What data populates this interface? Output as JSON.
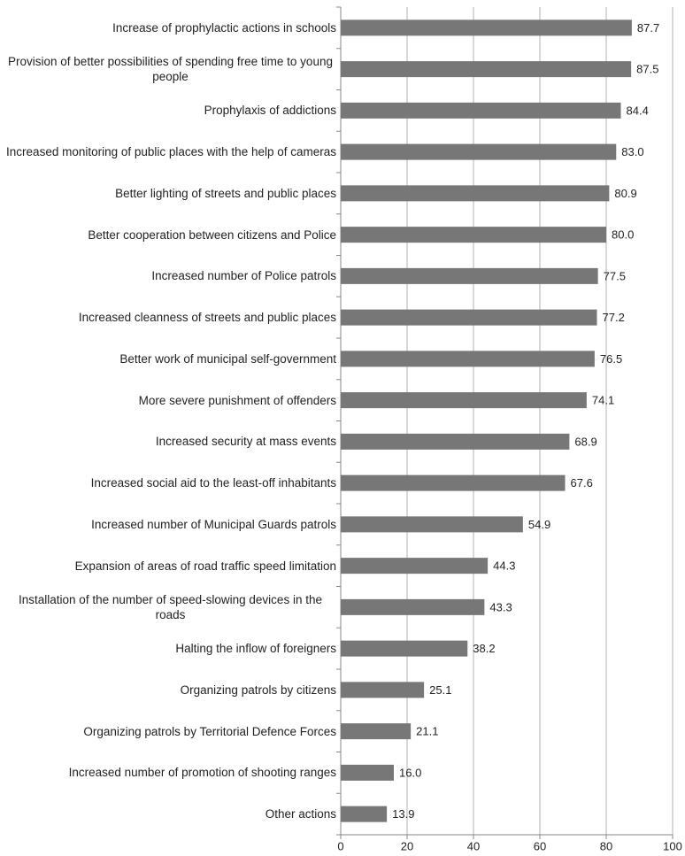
{
  "chart_data": {
    "type": "bar",
    "orientation": "horizontal",
    "categories": [
      "Increase of prophylactic actions in schools",
      "Provision of better possibilities of spending free time to young people",
      "Prophylaxis of addictions",
      "Increased monitoring of public places with the help of cameras",
      "Better lighting of streets and public places",
      "Better cooperation between citizens and Police",
      "Increased number of Police patrols",
      "Increased cleanness of streets and public places",
      "Better work of municipal self-government",
      "More severe punishment of offenders",
      "Increased security at mass events",
      "Increased social aid to the least-off inhabitants",
      "Increased number of Municipal Guards patrols",
      "Expansion of areas of road traffic speed limitation",
      "Installation of the number of speed-slowing devices in the roads",
      "Halting the inflow of foreigners",
      "Organizing patrols by citizens",
      "Organizing patrols by Territorial Defence Forces",
      "Increased number of promotion of shooting ranges",
      "Other actions"
    ],
    "values": [
      87.7,
      87.5,
      84.4,
      83.0,
      80.9,
      80.0,
      77.5,
      77.2,
      76.5,
      74.1,
      68.9,
      67.6,
      54.9,
      44.3,
      43.3,
      38.2,
      25.1,
      21.1,
      16.0,
      13.9
    ],
    "value_labels": [
      "87.7",
      "87.5",
      "84.4",
      "83.0",
      "80.9",
      "80.0",
      "77.5",
      "77.2",
      "76.5",
      "74.1",
      "68.9",
      "67.6",
      "54.9",
      "44.3",
      "43.3",
      "38.2",
      "25.1",
      "21.1",
      "16.0",
      "13.9"
    ],
    "color": "#777777",
    "xlim": [
      0,
      100
    ],
    "xticks": [
      0,
      20,
      40,
      60,
      80,
      100
    ],
    "grid": true
  }
}
